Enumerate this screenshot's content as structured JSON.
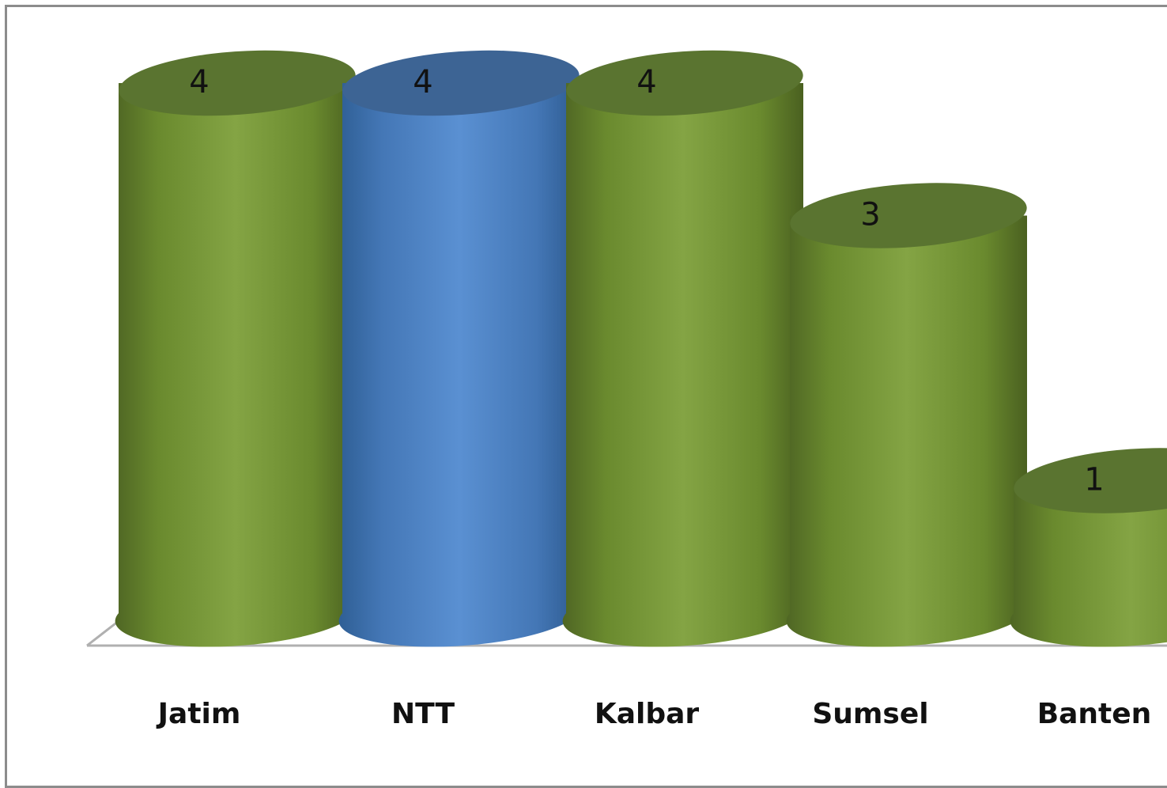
{
  "chart_data": {
    "type": "bar",
    "style": "3d-cylinder",
    "categories": [
      "Jatim",
      "NTT",
      "Kalbar",
      "Sumsel",
      "Banten"
    ],
    "values": [
      4,
      4,
      4,
      3,
      1
    ],
    "colors": [
      "#7a9a3a",
      "#4f86c6",
      "#7a9a3a",
      "#7a9a3a",
      "#7a9a3a"
    ],
    "data_labels": [
      "4",
      "4",
      "4",
      "3",
      "1"
    ],
    "ylim": [
      0,
      4
    ],
    "grid": false,
    "legend": "none"
  }
}
